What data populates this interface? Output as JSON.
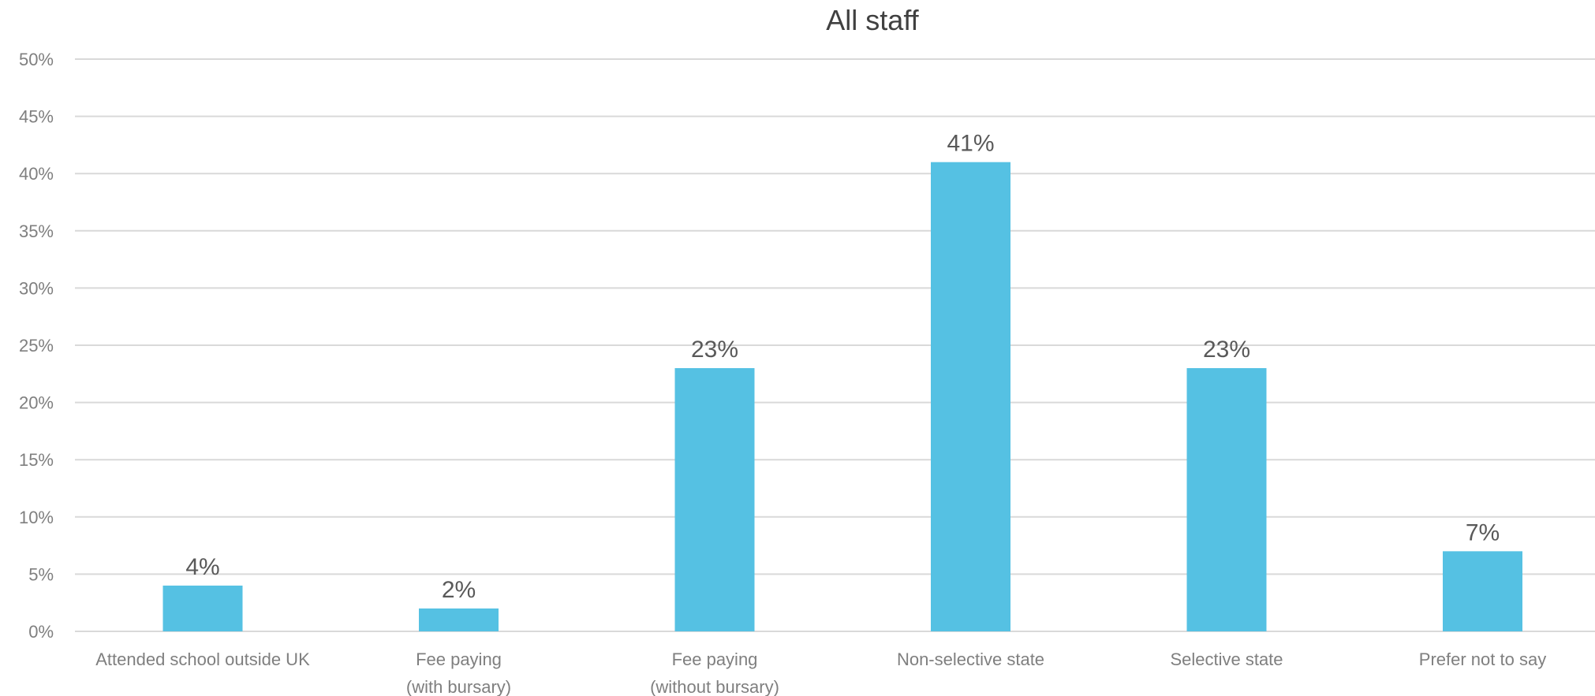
{
  "chart_data": {
    "type": "bar",
    "title": "All staff",
    "xlabel": "",
    "ylabel": "",
    "categories": [
      [
        "Attended school outside UK"
      ],
      [
        "Fee paying",
        "(with bursary)"
      ],
      [
        "Fee paying",
        "(without bursary)"
      ],
      [
        "Non-selective state"
      ],
      [
        "Selective state"
      ],
      [
        "Prefer not to say"
      ]
    ],
    "values": [
      4,
      2,
      23,
      41,
      23,
      7
    ],
    "data_labels": [
      "4%",
      "2%",
      "23%",
      "41%",
      "23%",
      "7%"
    ],
    "ylim": [
      0,
      50
    ],
    "y_ticks": [
      0,
      5,
      10,
      15,
      20,
      25,
      30,
      35,
      40,
      45,
      50
    ],
    "y_tick_labels": [
      "0%",
      "5%",
      "10%",
      "15%",
      "20%",
      "25%",
      "30%",
      "35%",
      "40%",
      "45%",
      "50%"
    ],
    "grid": true,
    "legend": "none",
    "bar_color": "#55c1e3"
  }
}
